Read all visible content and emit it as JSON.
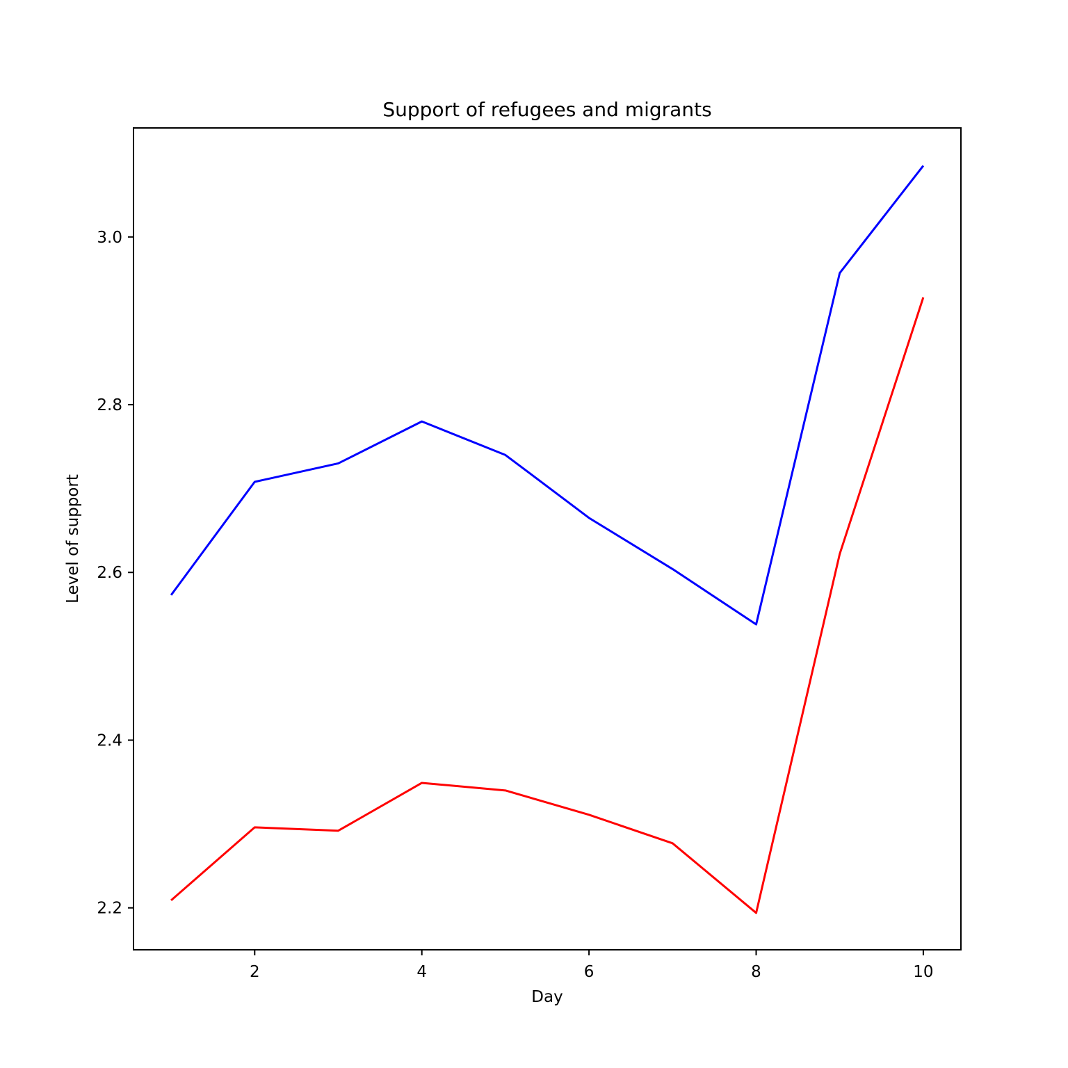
{
  "chart_data": {
    "type": "line",
    "title": "Support of refugees and migrants",
    "xlabel": "Day",
    "ylabel": "Level of support",
    "x": [
      1,
      2,
      3,
      4,
      5,
      6,
      7,
      8,
      9,
      10
    ],
    "xlim": [
      0.55,
      10.45
    ],
    "ylim": [
      2.15,
      3.13
    ],
    "xticks": [
      2,
      4,
      6,
      8,
      10
    ],
    "yticks": [
      2.2,
      2.4,
      2.6,
      2.8,
      3.0
    ],
    "xtick_labels": [
      "2",
      "4",
      "6",
      "8",
      "10"
    ],
    "ytick_labels": [
      "2.2",
      "2.4",
      "2.6",
      "2.8",
      "3.0"
    ],
    "grid": false,
    "legend": "none",
    "series": [
      {
        "color": "#0000ff",
        "values": [
          2.573,
          2.708,
          2.73,
          2.78,
          2.74,
          2.665,
          2.604,
          2.538,
          2.957,
          3.085
        ]
      },
      {
        "color": "#ff0000",
        "values": [
          2.209,
          2.296,
          2.292,
          2.349,
          2.34,
          2.311,
          2.277,
          2.194,
          2.622,
          2.928
        ]
      }
    ]
  }
}
